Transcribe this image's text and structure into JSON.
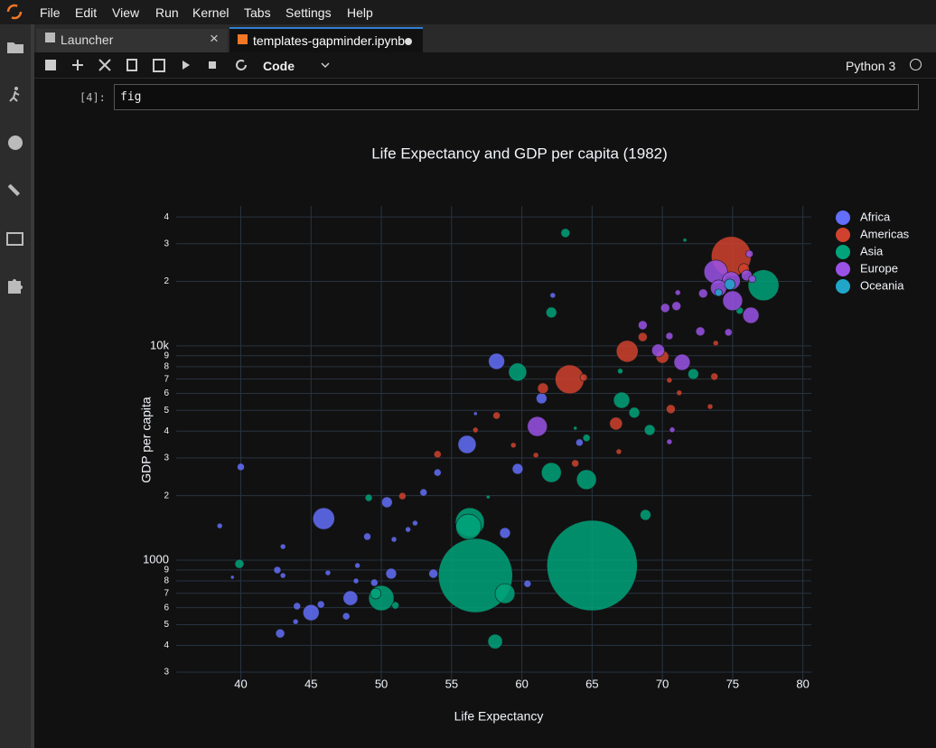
{
  "menu": [
    "File",
    "Edit",
    "View",
    "Run",
    "Kernel",
    "Tabs",
    "Settings",
    "Help"
  ],
  "tabs": [
    "Launcher",
    "templates-gapminder.ipynb"
  ],
  "toolbar": {
    "cell_type": "Code",
    "kernel": "Python 3"
  },
  "cell": {
    "prompt": "[4]:",
    "code": "fig"
  },
  "chart_data": {
    "type": "scatter",
    "title": "Life Expectancy and GDP per capita (1982)",
    "x_label": "Life Expectancy",
    "y_label": "GDP per capita",
    "log_y": true,
    "grid": true,
    "legend": "top-right",
    "xlim": [
      35.4,
      80.6
    ],
    "xticks": [
      40,
      45,
      50,
      55,
      60,
      65,
      70,
      75,
      80
    ],
    "ylim": [
      262,
      45000
    ],
    "yticks": [
      {
        "value": 300,
        "label": "3"
      },
      {
        "value": 400,
        "label": "4"
      },
      {
        "value": 500,
        "label": "5"
      },
      {
        "value": 600,
        "label": "6"
      },
      {
        "value": 700,
        "label": "7"
      },
      {
        "value": 800,
        "label": "8"
      },
      {
        "value": 900,
        "label": "9"
      },
      1000,
      {
        "value": 2000,
        "label": "2"
      },
      {
        "value": 3000,
        "label": "3"
      },
      {
        "value": 4000,
        "label": "4"
      },
      {
        "value": 5000,
        "label": "5"
      },
      {
        "value": 6000,
        "label": "6"
      },
      {
        "value": 7000,
        "label": "7"
      },
      {
        "value": 8000,
        "label": "8"
      },
      {
        "value": 9000,
        "label": "9"
      },
      {
        "value": 10000,
        "label": "10k"
      },
      {
        "value": 20000,
        "label": "2"
      },
      {
        "value": 30000,
        "label": "3"
      },
      {
        "value": 40000,
        "label": "4"
      }
    ],
    "series": [
      {
        "name": "Africa",
        "color": "#636efa",
        "x": [
          40.0,
          38.5,
          39.4,
          43.0,
          42.6,
          43.0,
          44.0,
          43.9,
          42.8,
          45.0,
          45.7,
          45.9,
          46.2,
          47.5,
          47.8,
          48.2,
          48.3,
          49.0,
          49.5,
          50.4,
          50.7,
          50.9,
          51.9,
          52.4,
          53.0,
          54.0,
          53.7,
          56.1,
          58.8,
          59.7,
          60.4,
          58.2,
          61.4,
          64.1,
          56.7,
          62.2
        ],
        "values": [
          2723,
          1446,
          832,
          1157,
          899,
          848,
          610,
          516,
          455,
          569,
          621,
          1563,
          873,
          547,
          665,
          800,
          944,
          1288,
          785,
          1862,
          865,
          1250,
          1390,
          1489,
          2070,
          2564,
          865,
          3467,
          1339,
          2667,
          776,
          8472,
          5689,
          3540,
          4830,
          17220
        ],
        "sizes": [
          6.4,
          3.6,
          1.6,
          3.6,
          6.4,
          3.6,
          6.4,
          3.6,
          10,
          32,
          6.4,
          58,
          3.6,
          6.4,
          26,
          3.6,
          3.6,
          6.4,
          6.4,
          14,
          14,
          3.6,
          3.6,
          3.6,
          6.4,
          6.4,
          10,
          40,
          14,
          14,
          6.4,
          32,
          14,
          6.4,
          1.6,
          3.6
        ]
      },
      {
        "name": "Americas",
        "color": "#d0422e",
        "x": [
          74.9,
          75.8,
          67.5,
          68.6,
          70.0,
          63.4,
          64.4,
          61.5,
          66.7,
          70.6,
          73.7,
          73.8,
          58.2,
          56.7,
          59.4,
          61.0,
          63.8,
          66.9,
          54.0,
          51.5,
          70.5,
          71.2,
          73.4
        ],
        "values": [
          26180,
          22860,
          9441,
          11000,
          8890,
          6980,
          7120,
          6340,
          4340,
          5070,
          7190,
          10300,
          4730,
          4050,
          3440,
          3090,
          2830,
          3210,
          3120,
          1990,
          6920,
          6040,
          5210
        ],
        "sizes": [
          194,
          14,
          58,
          10,
          20,
          102,
          6.4,
          14,
          20,
          10,
          6.4,
          3.6,
          6.4,
          3.6,
          3.6,
          3.6,
          6.4,
          3.6,
          6.4,
          6.4,
          3.6,
          3.6,
          3.6
        ]
      },
      {
        "name": "Asia",
        "color": "#00a37a",
        "x": [
          65.0,
          56.7,
          63.1,
          77.2,
          62.1,
          59.7,
          67.1,
          68.0,
          69.1,
          72.2,
          62.1,
          64.6,
          64.6,
          56.3,
          56.2,
          58.8,
          50.0,
          49.6,
          51.0,
          58.1,
          68.8,
          49.1,
          39.9,
          75.5,
          71.6,
          57.6,
          67.0,
          63.8
        ],
        "values": [
          944,
          848,
          33650,
          19190,
          14320,
          7550,
          5580,
          4880,
          4050,
          7390,
          2564,
          2376,
          3720,
          1503,
          1432,
          698,
          665,
          698,
          615,
          417,
          1626,
          1954,
          961,
          14620,
          31190,
          1972,
          7630,
          4130
        ],
        "sizes": [
          1000,
          672,
          10,
          116,
          14,
          40,
          32,
          14,
          14,
          14,
          48,
          48,
          6.4,
          102,
          78,
          48,
          78,
          14,
          6.4,
          26,
          14,
          6.4,
          10,
          6.4,
          1.6,
          1.6,
          3.6,
          1.6
        ]
      },
      {
        "name": "Europe",
        "color": "#9a52e6",
        "x": [
          73.8,
          75.0,
          76.3,
          76.2,
          76.0,
          76.4,
          74.9,
          74.0,
          72.9,
          71.0,
          70.2,
          71.1,
          68.6,
          70.5,
          69.7,
          71.4,
          72.7,
          74.7,
          61.1,
          70.5,
          70.7
        ],
        "values": [
          22180,
          16250,
          13900,
          26900,
          21330,
          20530,
          20130,
          18620,
          17570,
          15350,
          15040,
          17740,
          12500,
          11120,
          9530,
          8390,
          11690,
          11570,
          4207,
          3570,
          4060
        ],
        "sizes": [
          68,
          48,
          32,
          6.4,
          14,
          6.4,
          40,
          32,
          10,
          10,
          10,
          3.6,
          10,
          6.4,
          20,
          32,
          10,
          6.4,
          48,
          3.6,
          3.6
        ]
      },
      {
        "name": "Oceania",
        "color": "#1fa6c9",
        "x": [
          74.8,
          74.0
        ],
        "values": [
          19370,
          17740
        ],
        "sizes": [
          14,
          6.4
        ]
      }
    ]
  }
}
